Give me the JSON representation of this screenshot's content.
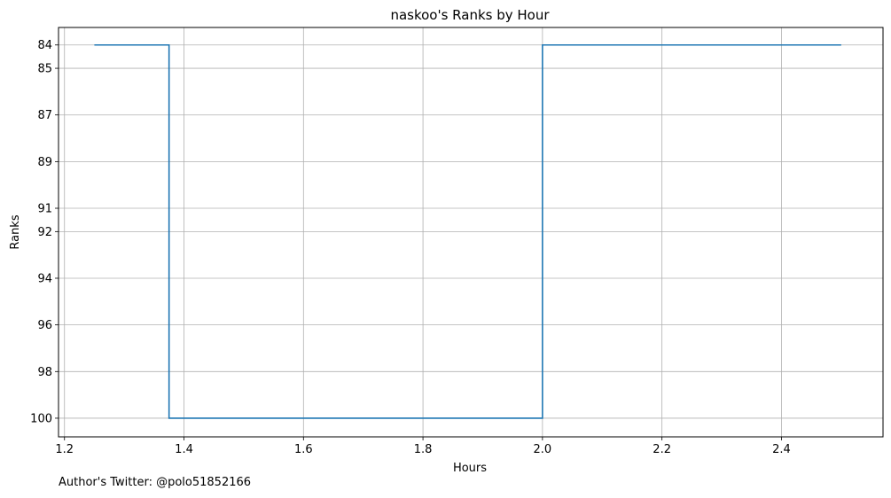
{
  "chart_data": {
    "type": "line",
    "title": "naskoo's Ranks by Hour",
    "xlabel": "Hours",
    "ylabel": "Ranks",
    "x": [
      1.25,
      1.375,
      1.375,
      2.0,
      2.0,
      2.5
    ],
    "series": [
      {
        "values": [
          84,
          84,
          100,
          100,
          84,
          84
        ],
        "color": "#1f77b4"
      }
    ],
    "xlim": [
      1.19,
      2.57
    ],
    "ylim": [
      100.8,
      83.25
    ],
    "y_inverted": true,
    "xticks": [
      1.2,
      1.4,
      1.6,
      1.8,
      2.0,
      2.2,
      2.4
    ],
    "xtick_labels": [
      "1.2",
      "1.4",
      "1.6",
      "1.8",
      "2.0",
      "2.2",
      "2.4"
    ],
    "yticks": [
      84,
      85,
      87,
      89,
      91,
      92,
      94,
      96,
      98,
      100
    ],
    "ytick_labels": [
      "84",
      "85",
      "87",
      "89",
      "91",
      "92",
      "94",
      "96",
      "98",
      "100"
    ],
    "grid": true,
    "line_style": "step"
  },
  "footer": "Author's Twitter: @polo51852166"
}
